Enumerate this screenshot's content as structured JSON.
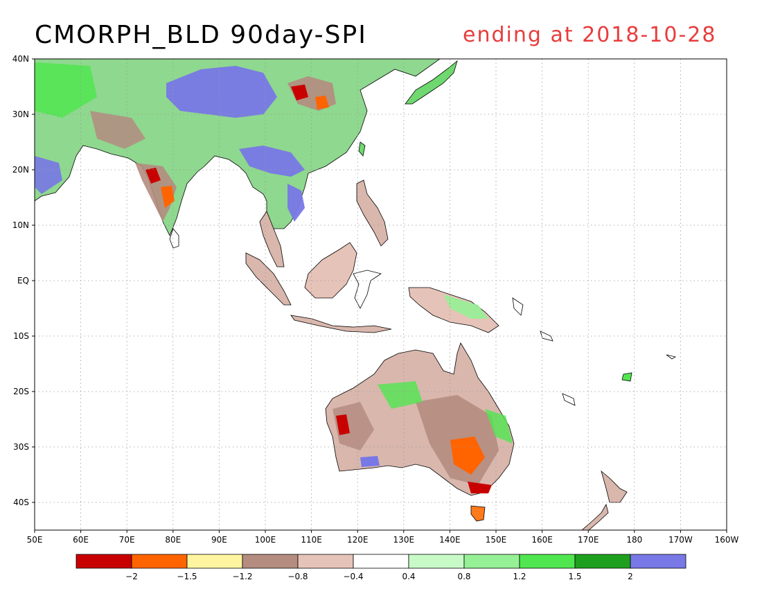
{
  "title": "CMORPH_BLD 90day-SPI",
  "subtitle": "ending at 2018-10-28",
  "map": {
    "lon_range": [
      50,
      200
    ],
    "lat_range": [
      -45,
      40
    ],
    "lon_ticks": [
      "50E",
      "60E",
      "70E",
      "80E",
      "90E",
      "100E",
      "110E",
      "120E",
      "130E",
      "140E",
      "150E",
      "160E",
      "170E",
      "180",
      "170W",
      "160W"
    ],
    "lat_ticks": [
      "40N",
      "30N",
      "20N",
      "10N",
      "EQ",
      "10S",
      "20S",
      "30S",
      "40S"
    ],
    "grid": true
  },
  "colorbar": {
    "colors": [
      "#c80000",
      "#ff6400",
      "#fff5a0",
      "#b48c80",
      "#e6c3b8",
      "#ffffff",
      "#c8fac8",
      "#96f096",
      "#50e650",
      "#1ea01e",
      "#7878e6"
    ],
    "labels": [
      "-2",
      "-1.5",
      "-1.2",
      "-0.8",
      "-0.4",
      "0.4",
      "0.8",
      "1.2",
      "1.5",
      "2"
    ]
  }
}
